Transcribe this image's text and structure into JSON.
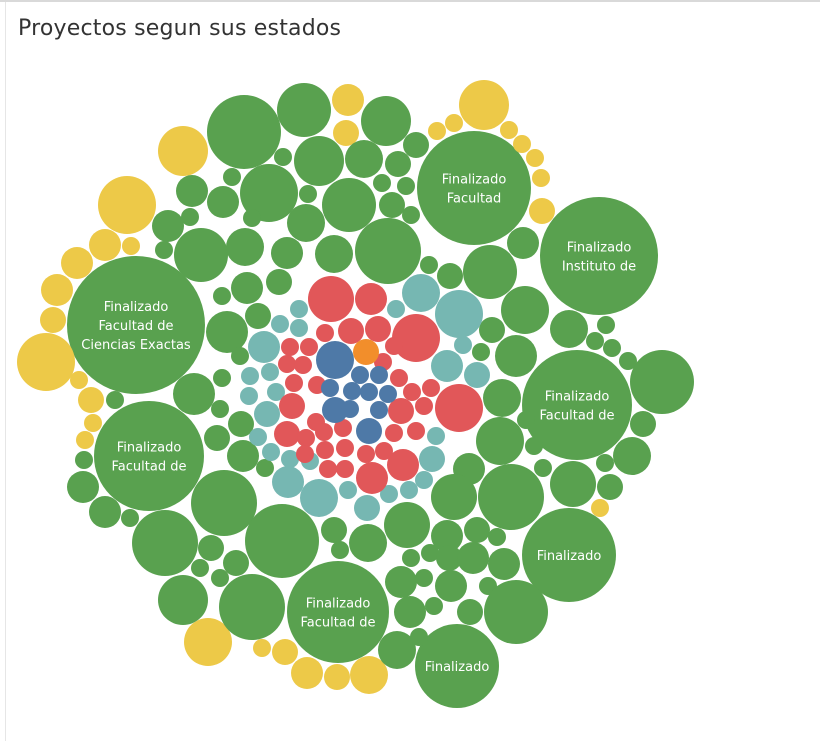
{
  "title": "Proyectos segun sus estados",
  "colors": {
    "green": "#59a14f",
    "yellow": "#edc948",
    "red": "#e15759",
    "teal": "#76b7b2",
    "blue": "#4e79a7",
    "orange": "#f28e2b",
    "label_text": "#ffffff"
  },
  "chart_data": {
    "type": "packed-bubble",
    "title": "Proyectos segun sus estados",
    "labels": [
      {
        "lines": [
          "Finalizado",
          "Facultad"
        ]
      },
      {
        "lines": [
          "Finalizado",
          "Instituto de"
        ]
      },
      {
        "lines": [
          "Finalizado",
          "Facultad de",
          "Ciencias Exactas"
        ]
      },
      {
        "lines": [
          "Finalizado",
          "Facultad de"
        ]
      },
      {
        "lines": [
          "Finalizado",
          "Facultad de"
        ]
      },
      {
        "lines": [
          "Finalizado"
        ]
      },
      {
        "lines": [
          "Finalizado",
          "Facultad de"
        ]
      },
      {
        "lines": [
          "Finalizado"
        ]
      }
    ]
  }
}
